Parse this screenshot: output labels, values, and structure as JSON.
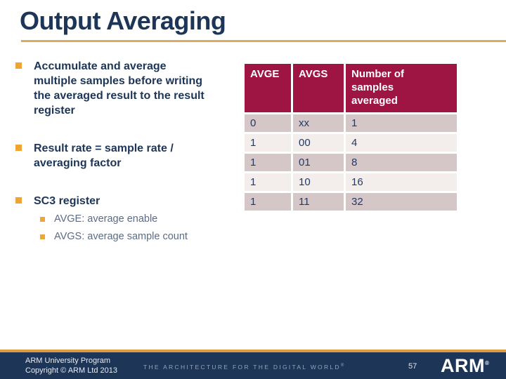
{
  "slide": {
    "title": "Output Averaging",
    "page_number": "57"
  },
  "bullets": {
    "items": [
      {
        "label": "Accumulate and average multiple samples before writing the averaged result to the result register"
      },
      {
        "label": "Result rate = sample rate / averaging factor"
      },
      {
        "label": "SC3 register",
        "sub": [
          "AVGE: average enable",
          "AVGS: average sample count"
        ]
      }
    ]
  },
  "table": {
    "headers": [
      "AVGE",
      "AVGS",
      "Number of samples averaged"
    ],
    "rows": [
      [
        "0",
        "xx",
        "1"
      ],
      [
        "1",
        "00",
        "4"
      ],
      [
        "1",
        "01",
        "8"
      ],
      [
        "1",
        "10",
        "16"
      ],
      [
        "1",
        "11",
        "32"
      ]
    ]
  },
  "footer": {
    "program": "ARM University Program",
    "copyright": "Copyright © ARM Ltd 2013",
    "tagline": "THE ARCHITECTURE FOR THE DIGITAL WORLD",
    "registered": "®",
    "logo_text": "ARM"
  },
  "colors": {
    "title_navy": "#1d3557",
    "accent_gold": "#ddab5c",
    "bullet_orange": "#f0a433",
    "table_header_red": "#9e1443",
    "table_row_dark": "#d5c6c8",
    "table_row_light": "#f3edec",
    "footer_navy": "#1d3557",
    "footer_gold": "#df9a40"
  }
}
